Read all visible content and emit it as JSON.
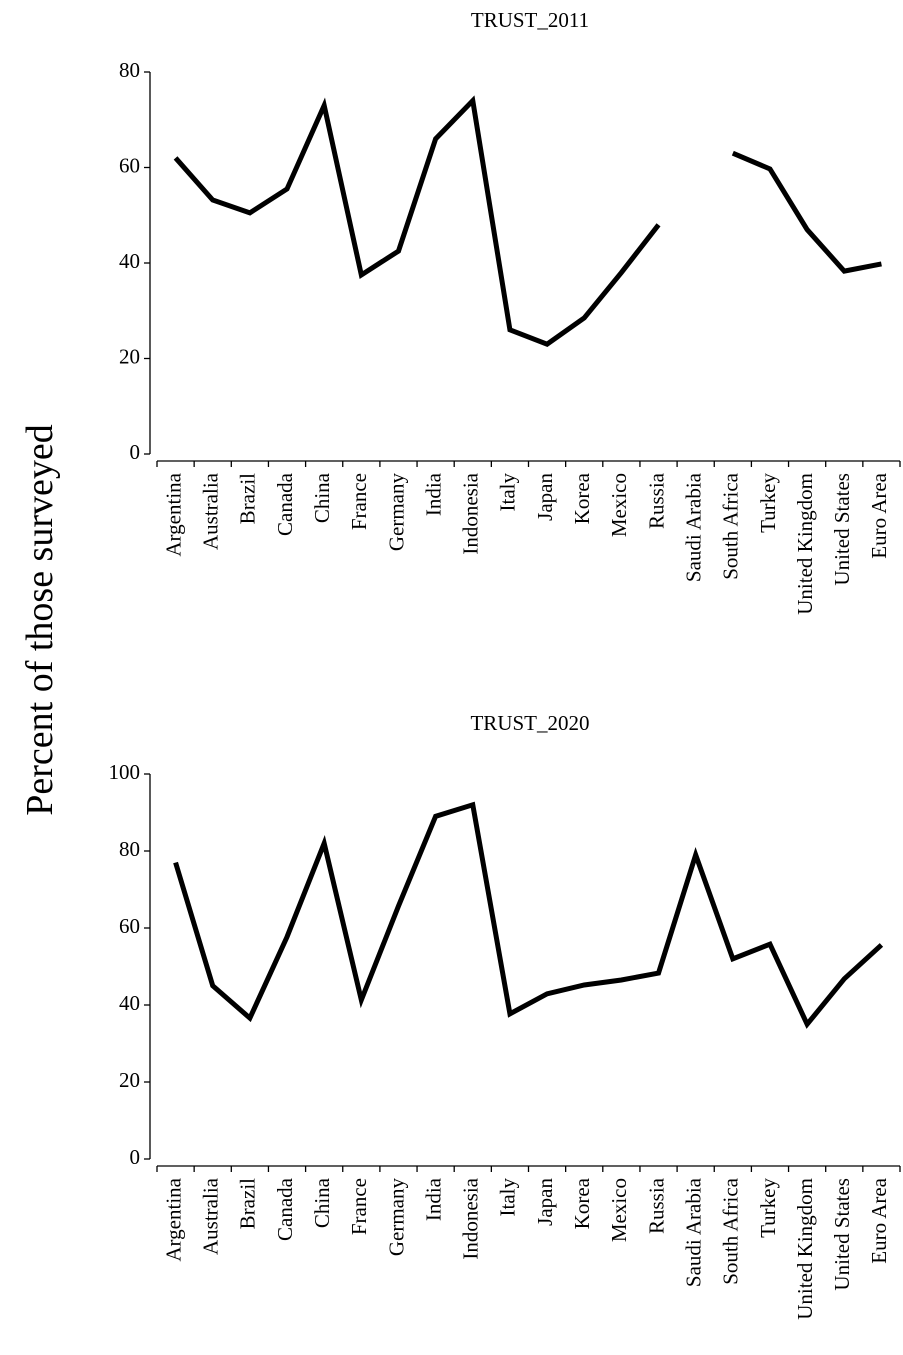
{
  "ylabel": "Percent of those surveyed",
  "chart_data": [
    {
      "type": "line",
      "title": "TRUST_2011",
      "categories": [
        "Argentina",
        "Australia",
        "Brazil",
        "Canada",
        "China",
        "France",
        "Germany",
        "India",
        "Indonesia",
        "Italy",
        "Japan",
        "Korea",
        "Mexico",
        "Russia",
        "Saudi Arabia",
        "South Africa",
        "Turkey",
        "United Kingdom",
        "United States",
        "Euro Area"
      ],
      "values": [
        62,
        53.2,
        50.5,
        55.5,
        73,
        37.5,
        42.5,
        66,
        74,
        26,
        23,
        28.5,
        38,
        48,
        null,
        63,
        59.7,
        47,
        38.3,
        39.8
      ],
      "color": "#000000",
      "ylim": [
        0,
        80
      ],
      "yticks": [
        0,
        20,
        40,
        60,
        80
      ],
      "grid": false
    },
    {
      "type": "line",
      "title": "TRUST_2020",
      "categories": [
        "Argentina",
        "Australia",
        "Brazil",
        "Canada",
        "China",
        "France",
        "Germany",
        "India",
        "Indonesia",
        "Italy",
        "Japan",
        "Korea",
        "Mexico",
        "Russia",
        "Saudi Arabia",
        "South Africa",
        "Turkey",
        "United Kingdom",
        "United States",
        "Euro Area"
      ],
      "values": [
        77,
        45,
        36.6,
        57.7,
        82,
        41.3,
        65.7,
        89,
        92,
        37.7,
        42.9,
        45.2,
        46.5,
        48.3,
        79,
        52,
        55.8,
        35,
        46.8,
        55.6
      ],
      "color": "#000000",
      "ylim": [
        0,
        100
      ],
      "yticks": [
        0,
        20,
        40,
        60,
        80,
        100
      ],
      "grid": false
    }
  ]
}
